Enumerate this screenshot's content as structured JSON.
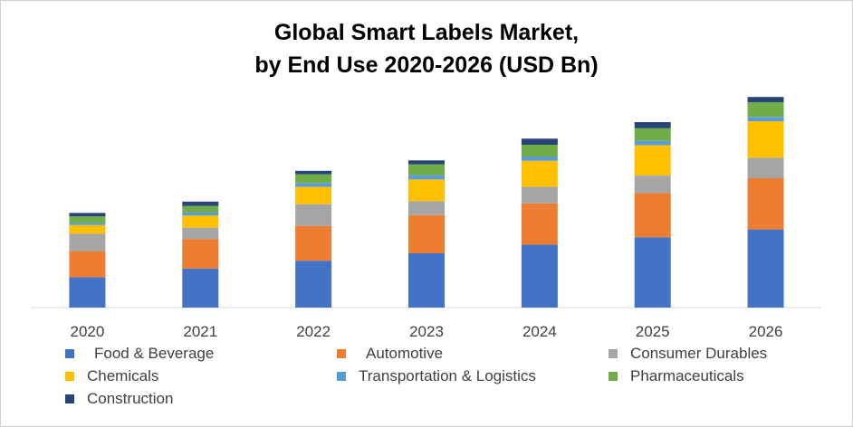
{
  "chart_data": {
    "type": "bar",
    "stacked": true,
    "title_lines": [
      "Global Smart Labels Market,",
      "by End Use 2020-2026 (USD Bn)"
    ],
    "categories": [
      "2020",
      "2021",
      "2022",
      "2023",
      "2024",
      "2025",
      "2026"
    ],
    "series": [
      {
        "name": "Food & Beverage",
        "color": "#4472C4",
        "values": [
          7.0,
          9.0,
          10.8,
          12.5,
          14.5,
          16.2,
          18.0
        ]
      },
      {
        "name": "Automotive",
        "color": "#ED7D31",
        "values": [
          6.0,
          6.8,
          8.0,
          8.8,
          9.5,
          10.2,
          11.8
        ]
      },
      {
        "name": "Consumer Durables",
        "color": "#A5A5A5",
        "values": [
          4.0,
          2.6,
          5.0,
          3.2,
          3.8,
          4.0,
          4.7
        ]
      },
      {
        "name": "Chemicals",
        "color": "#FFC000",
        "values": [
          2.0,
          2.8,
          4.0,
          5.0,
          6.0,
          7.0,
          8.4
        ]
      },
      {
        "name": "Transportation & Logistics",
        "color": "#5B9BD5",
        "values": [
          0.5,
          0.7,
          0.9,
          1.0,
          1.0,
          1.0,
          1.0
        ]
      },
      {
        "name": "Pharmaceuticals",
        "color": "#70AD47",
        "values": [
          1.5,
          1.5,
          2.0,
          2.5,
          2.7,
          2.9,
          3.4
        ]
      },
      {
        "name": "Construction",
        "color": "#264478",
        "values": [
          0.8,
          1.0,
          0.8,
          0.9,
          1.4,
          1.4,
          1.2
        ]
      }
    ],
    "ylim": [
      0,
      50
    ],
    "grid": false,
    "legend": "bottom"
  }
}
